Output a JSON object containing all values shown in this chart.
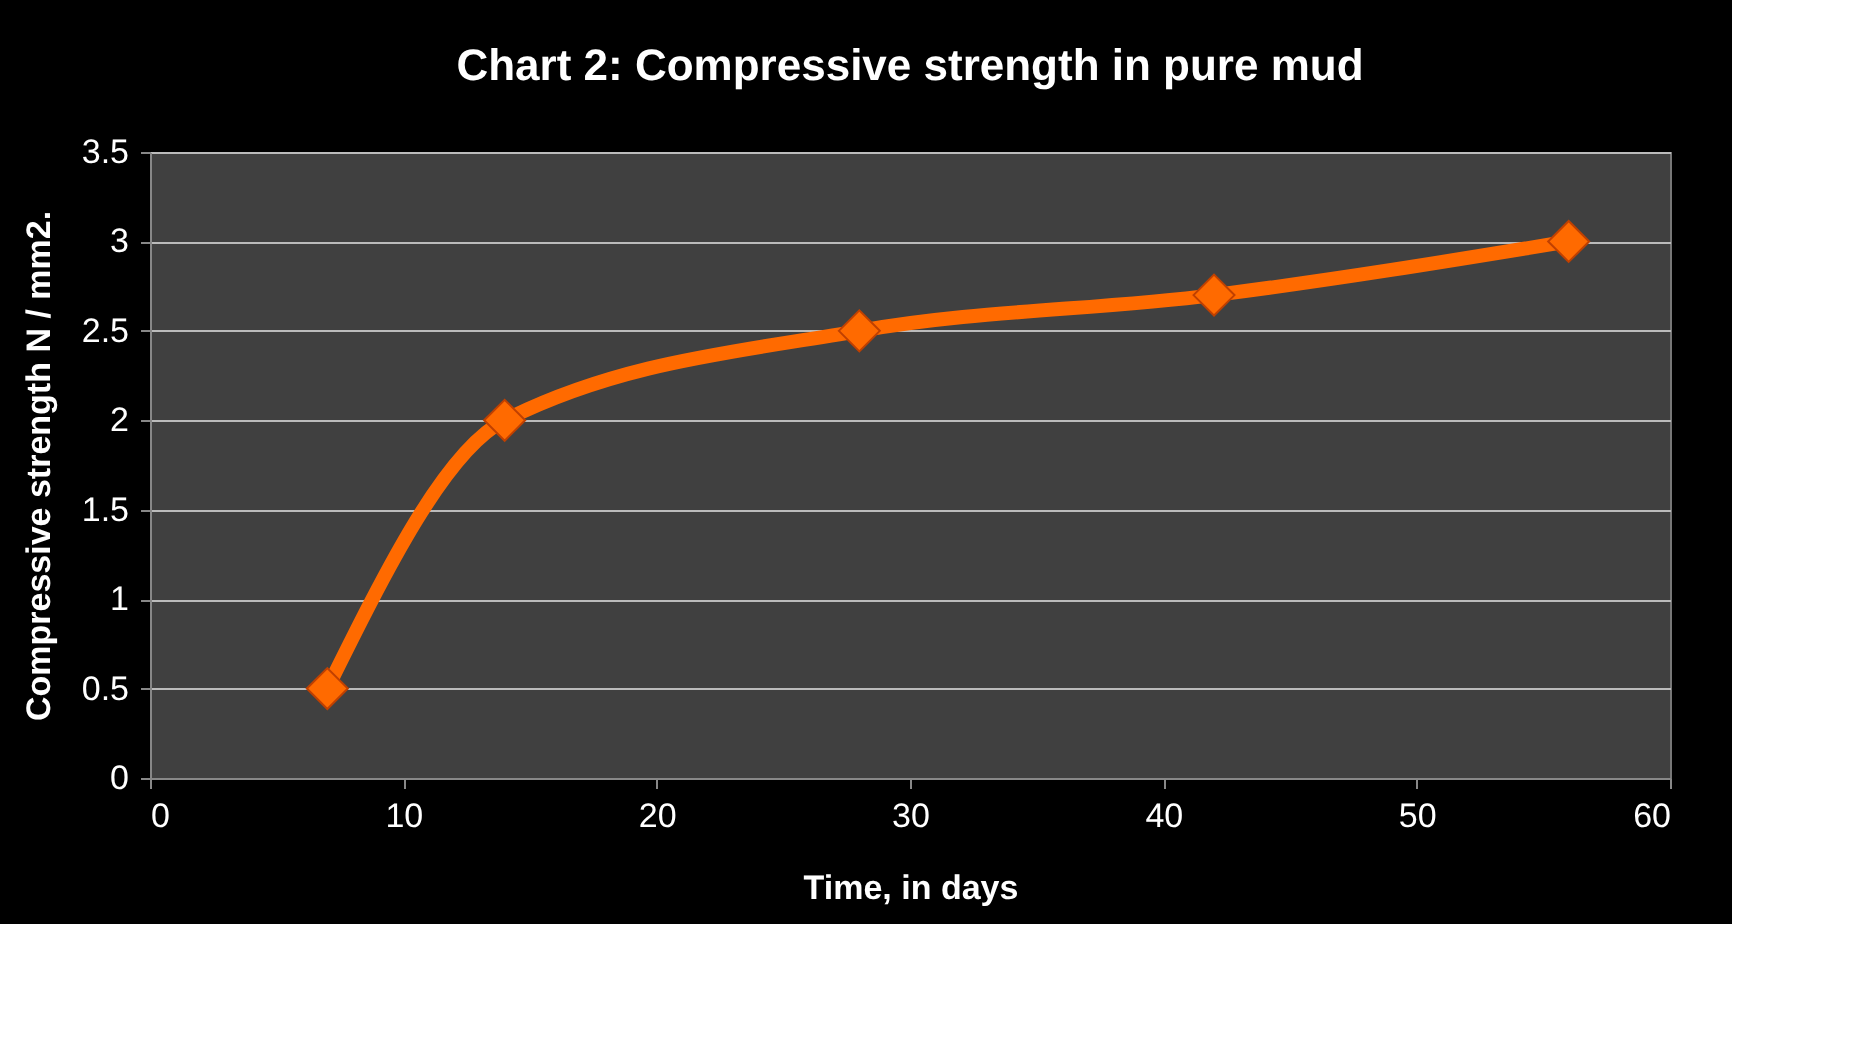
{
  "chart_data": {
    "type": "line",
    "title": "Chart 2: Compressive strength in pure mud",
    "xlabel": "Time, in days",
    "ylabel": "Compressive strength N / mm2.",
    "x": [
      7,
      14,
      28,
      42,
      56
    ],
    "series": [
      {
        "color": "#ff6a00",
        "values": [
          0.5,
          2,
          2.5,
          2.7,
          3
        ]
      }
    ],
    "xlim": [
      0,
      60
    ],
    "xticks": [
      0,
      10,
      20,
      30,
      40,
      50,
      60
    ],
    "ylim": [
      0,
      3.5
    ],
    "yticks": [
      0,
      0.5,
      1,
      1.5,
      2,
      2.5,
      3,
      3.5
    ],
    "grid": "y",
    "marker": "diamond",
    "line_style": "solid"
  }
}
